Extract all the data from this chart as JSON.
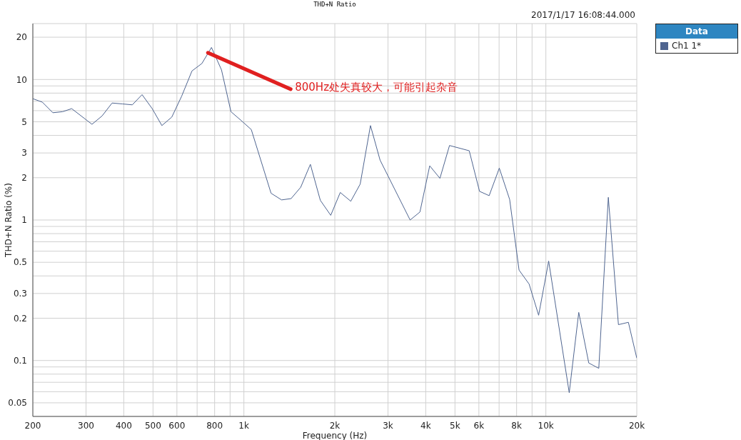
{
  "chart_data": {
    "type": "line",
    "title": "THD+N Ratio",
    "xlabel": "Frequency (Hz)",
    "ylabel": "THD+N Ratio (%)",
    "legend_title": "Data",
    "log": "xy",
    "grid": true,
    "legend": "top right",
    "marker": "none",
    "line_style": "solid",
    "xlim": [
      200,
      20000
    ],
    "ylim": [
      0.04,
      25
    ],
    "xticks": [
      200,
      300,
      400,
      500,
      600,
      {
        "value": 700,
        "label": null
      },
      800,
      {
        "value": 900,
        "label": null
      },
      {
        "value": 1000,
        "label": "1k"
      },
      {
        "value": 2000,
        "label": "2k"
      },
      {
        "value": 3000,
        "label": "3k"
      },
      {
        "value": 4000,
        "label": "4k"
      },
      {
        "value": 5000,
        "label": "5k"
      },
      {
        "value": 6000,
        "label": "6k"
      },
      {
        "value": 7000,
        "label": null
      },
      {
        "value": 8000,
        "label": "8k"
      },
      {
        "value": 9000,
        "label": null
      },
      {
        "value": 10000,
        "label": "10k"
      },
      {
        "value": 20000,
        "label": "20k"
      }
    ],
    "yticks": [
      0.05,
      {
        "value": 0.06,
        "label": null
      },
      {
        "value": 0.07,
        "label": null
      },
      {
        "value": 0.08,
        "label": null
      },
      {
        "value": 0.09,
        "label": null
      },
      0.1,
      0.2,
      0.3,
      {
        "value": 0.4,
        "label": null
      },
      0.5,
      {
        "value": 0.6,
        "label": null
      },
      {
        "value": 0.7,
        "label": null
      },
      {
        "value": 0.8,
        "label": null
      },
      {
        "value": 0.9,
        "label": null
      },
      1,
      2,
      3,
      {
        "value": 4,
        "label": null
      },
      5,
      {
        "value": 6,
        "label": null
      },
      {
        "value": 7,
        "label": null
      },
      {
        "value": 8,
        "label": null
      },
      {
        "value": 9,
        "label": null
      },
      10,
      20
    ],
    "annotations": [
      "2017/1/17 16:08:44.000",
      {
        "text": "800Hz处失真较大，可能引起杂音",
        "x": 760,
        "y": 15.5
      }
    ],
    "series": [
      {
        "name": "Ch1 1*",
        "color": "#4f6590",
        "x": [
          200,
          215,
          233,
          251,
          269,
          314,
          339,
          366,
          396,
          427,
          460,
          497,
          535,
          577,
          622,
          673,
          726,
          781,
          843,
          906,
          980,
          1058,
          1230,
          1333,
          1433,
          1542,
          1660,
          1791,
          1939,
          2085,
          2259,
          2427,
          2625,
          2824,
          3552,
          3828,
          4124,
          4458,
          4796,
          5574,
          6030,
          6489,
          7011,
          7587,
          8151,
          8800,
          9463,
          10215,
          11950,
          12850,
          13870,
          14970,
          16100,
          17390,
          18760,
          20000
        ],
        "values": [
          7.3,
          6.9,
          5.8,
          5.9,
          6.2,
          4.8,
          5.5,
          6.8,
          6.7,
          6.6,
          7.8,
          6.2,
          4.7,
          5.4,
          7.6,
          11.5,
          13,
          16.9,
          11.7,
          5.9,
          5.1,
          4.4,
          1.55,
          1.39,
          1.42,
          1.71,
          2.49,
          1.38,
          1.08,
          1.57,
          1.36,
          1.8,
          4.7,
          2.67,
          1.0,
          1.14,
          2.43,
          1.98,
          3.39,
          3.11,
          1.6,
          1.49,
          2.34,
          1.4,
          0.44,
          0.35,
          0.21,
          0.51,
          0.059,
          0.22,
          0.096,
          0.088,
          1.45,
          0.18,
          0.187,
          0.104
        ]
      }
    ]
  }
}
